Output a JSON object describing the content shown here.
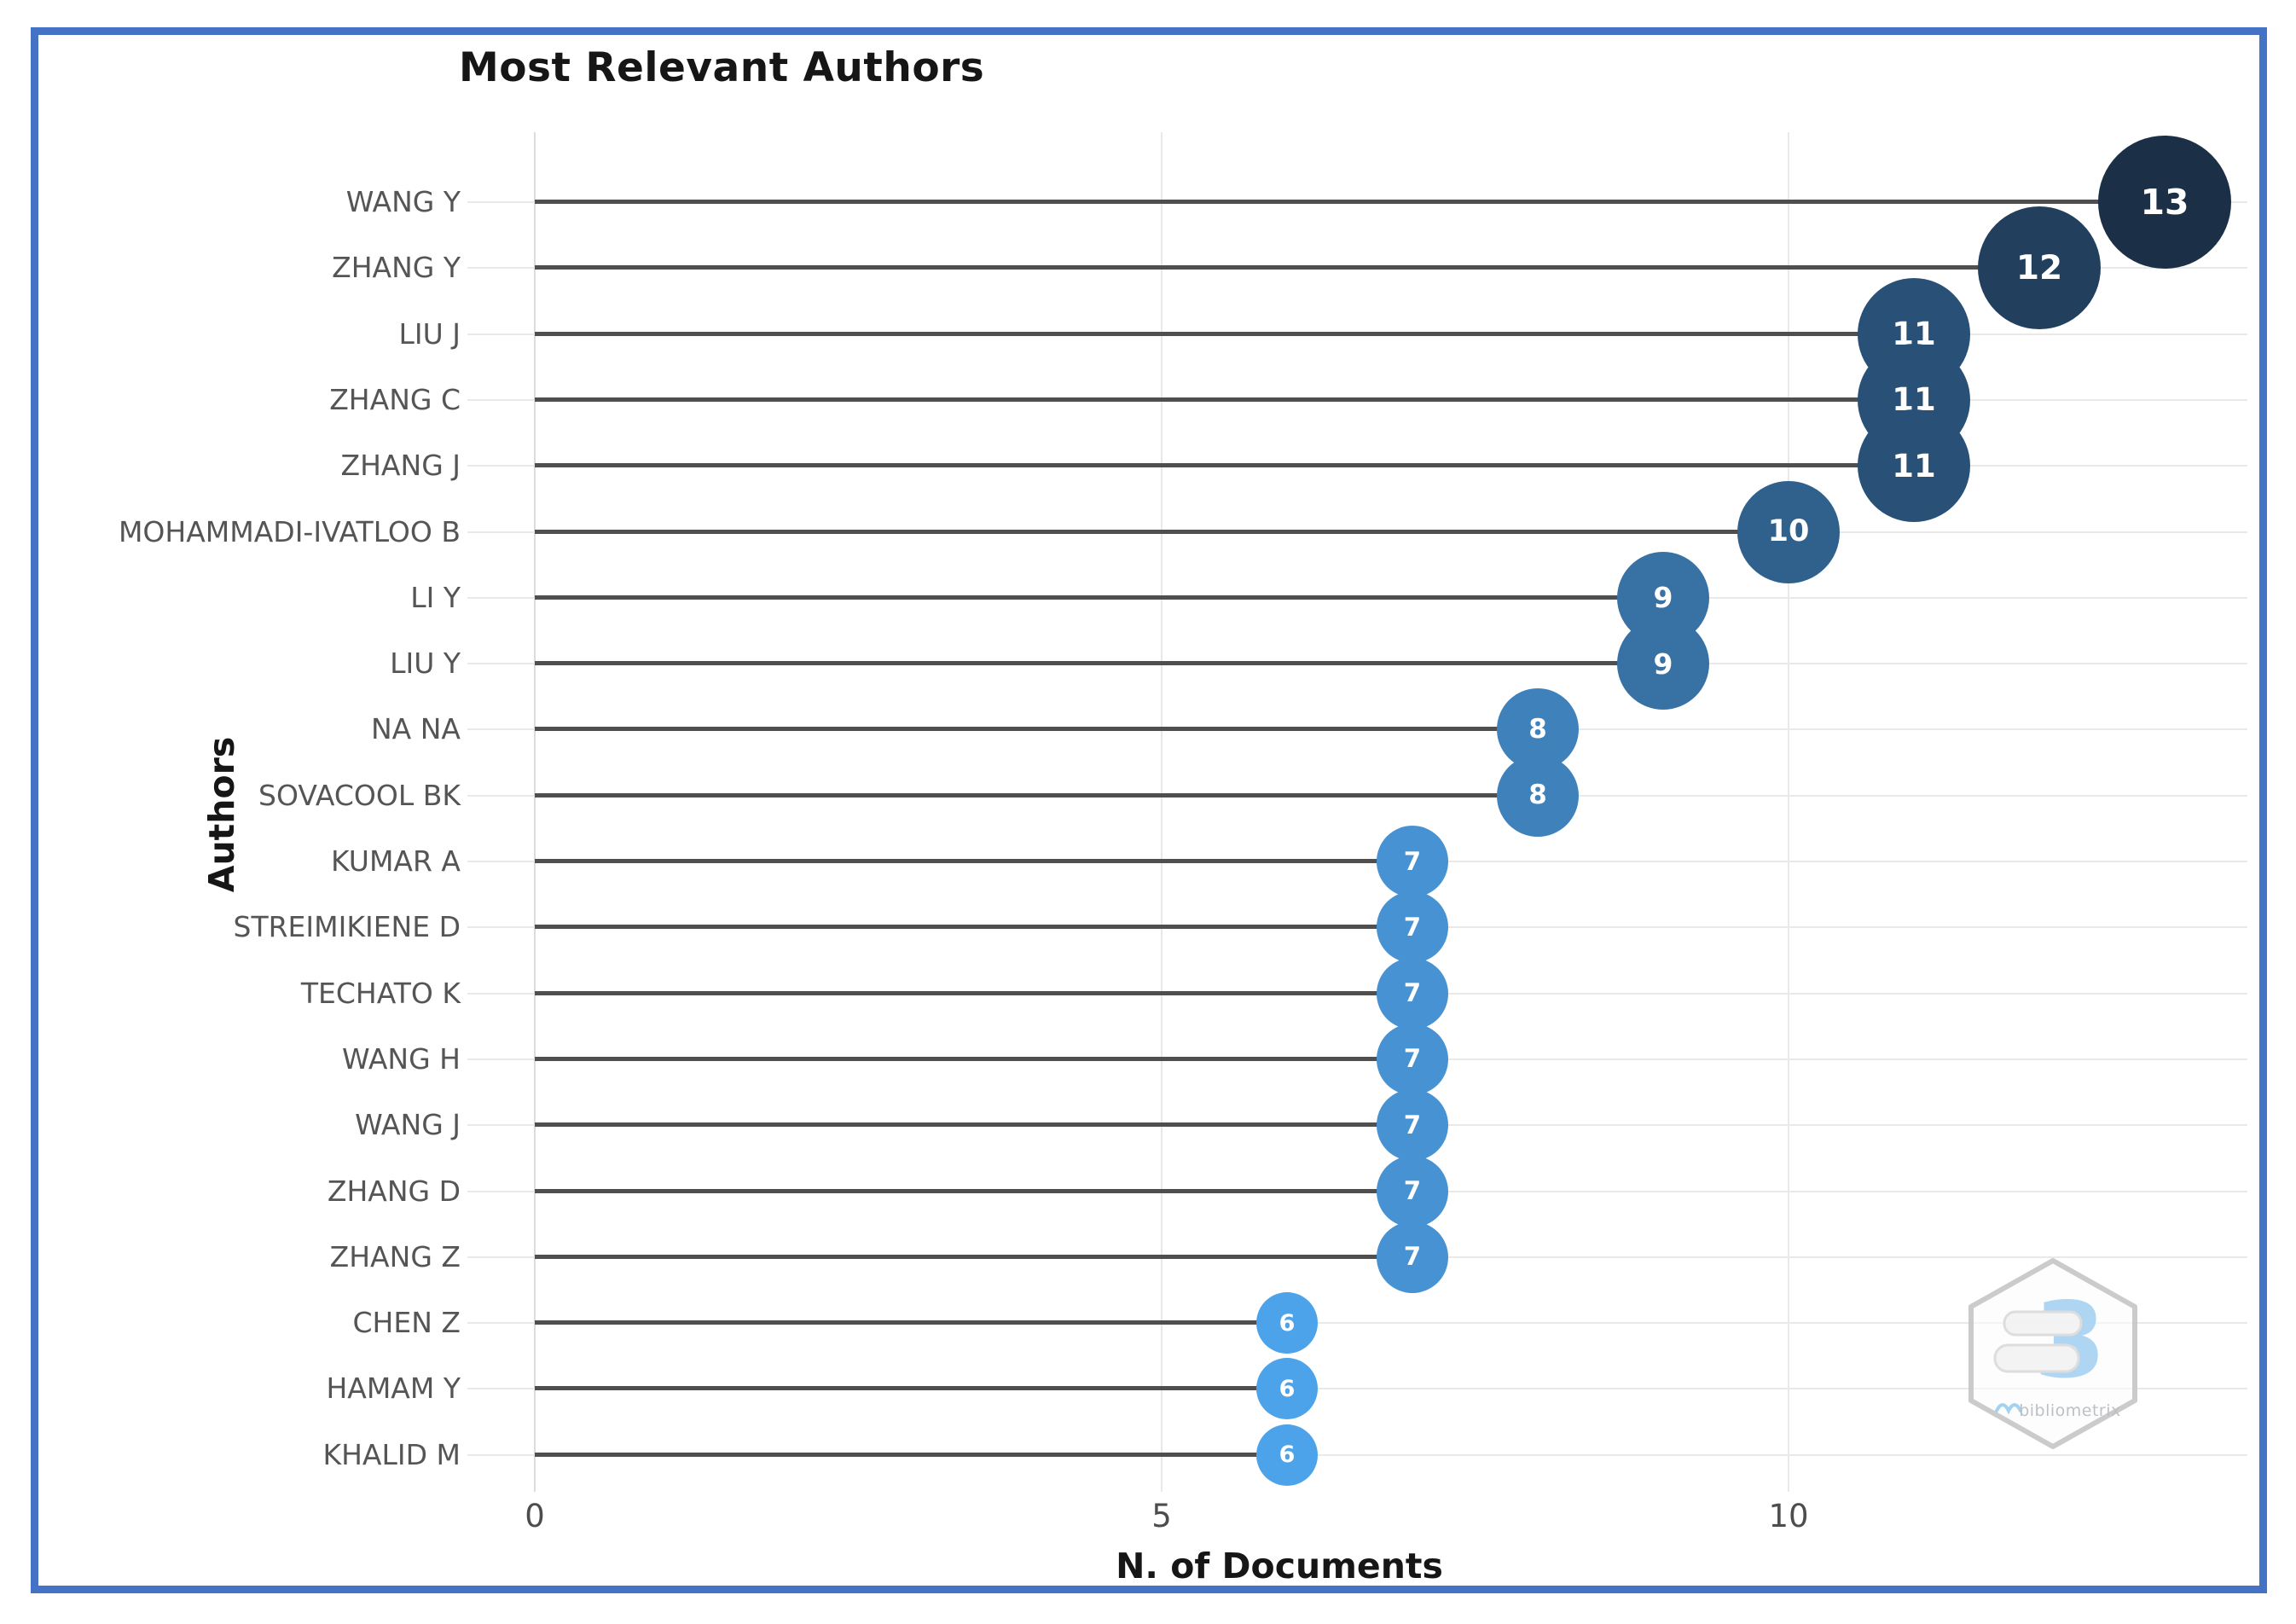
{
  "page": {
    "background": "#ffffff",
    "border_color": "#4472c4"
  },
  "chart_data": {
    "type": "scatter",
    "subtype": "horizontal-lollipop",
    "title": "Most Relevant Authors",
    "xlabel": "N. of Documents",
    "ylabel": "Authors",
    "x_ticks": [
      "0",
      "5",
      "10"
    ],
    "xlim": [
      0,
      13.8
    ],
    "grid": true,
    "legend_position": "none",
    "categories": [
      "WANG Y",
      "ZHANG Y",
      "LIU J",
      "ZHANG C",
      "ZHANG J",
      "MOHAMMADI-IVATLOO B",
      "LI Y",
      "LIU Y",
      "NA NA",
      "SOVACOOL BK",
      "KUMAR A",
      "STREIMIKIENE D",
      "TECHATO K",
      "WANG H",
      "WANG J",
      "ZHANG D",
      "ZHANG Z",
      "CHEN Z",
      "HAMAM Y",
      "KHALID M"
    ],
    "values": [
      13,
      12,
      11,
      11,
      11,
      10,
      9,
      9,
      8,
      8,
      7,
      7,
      7,
      7,
      7,
      7,
      7,
      6,
      6,
      6
    ],
    "point_labels": [
      "13",
      "12",
      "11",
      "11",
      "11",
      "10",
      "9",
      "9",
      "8",
      "8",
      "7",
      "7",
      "7",
      "7",
      "7",
      "7",
      "7",
      "6",
      "6",
      "6"
    ],
    "color_scale": {
      "min_value": 6,
      "max_value": 13,
      "min_color": "#4da3ea",
      "max_color": "#1b2f47"
    },
    "style": {
      "stem_color": "#4f4f4f",
      "gridline_color": "#e9e9e9",
      "axis_line_color": "#dddddd",
      "category_label_color": "#555555",
      "tick_label_color": "#4d4d4d",
      "title_color": "#161616",
      "bubble_text_color": "#ffffff"
    }
  },
  "watermark": {
    "label": "bibliometrix",
    "glyph": "3",
    "hexagon_stroke": "#c9c9c9",
    "glyph_color": "#aad3f2",
    "pencil_fill": "#f3f3f3",
    "pencil_stroke": "#dcdcdc",
    "label_color": "#b9bdc2"
  }
}
